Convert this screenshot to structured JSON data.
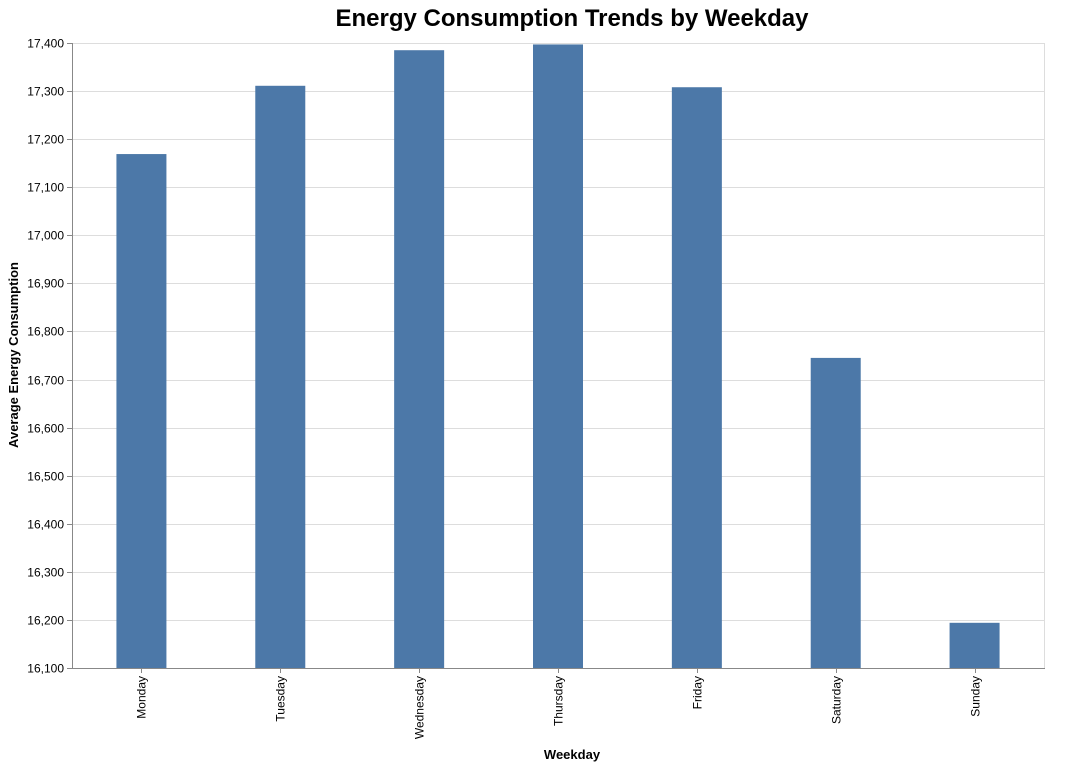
{
  "chart_data": {
    "type": "bar",
    "title": "Energy Consumption Trends by Weekday",
    "xlabel": "Weekday",
    "ylabel": "Average Energy Consumption",
    "categories": [
      "Monday",
      "Tuesday",
      "Wednesday",
      "Thursday",
      "Friday",
      "Saturday",
      "Sunday"
    ],
    "values": [
      17169,
      17311,
      17385,
      17397,
      17308,
      16745,
      16194
    ],
    "ylim": [
      16100,
      17400
    ],
    "yticks": [
      16100,
      16200,
      16300,
      16400,
      16500,
      16600,
      16700,
      16800,
      16900,
      17000,
      17100,
      17200,
      17300,
      17400
    ],
    "ytick_labels": [
      "16,100",
      "16,200",
      "16,300",
      "16,400",
      "16,500",
      "16,600",
      "16,700",
      "16,800",
      "16,900",
      "17,000",
      "17,100",
      "17,200",
      "17,300",
      "17,400"
    ],
    "grid": true,
    "legend": "none",
    "colors": {
      "bar": "#4c78a8",
      "grid": "#dddddd",
      "axis": "#888888"
    }
  }
}
